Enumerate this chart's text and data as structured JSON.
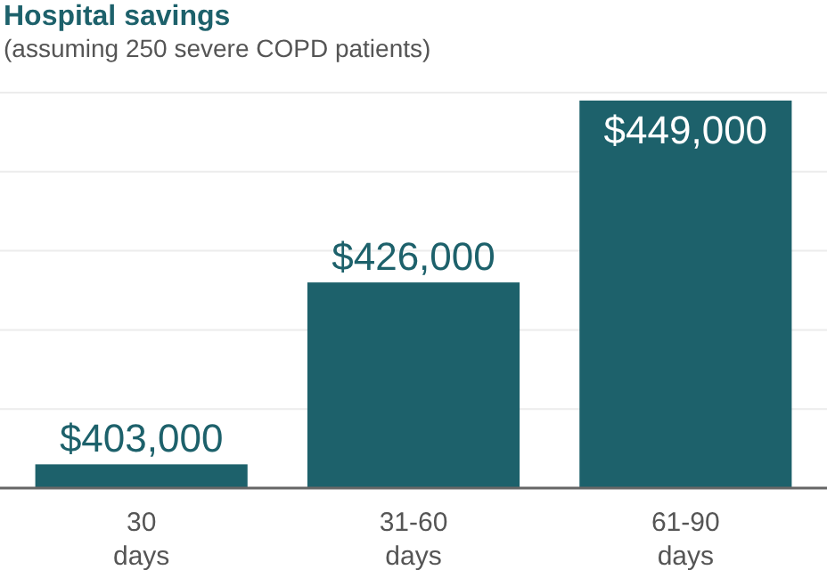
{
  "chart_data": {
    "type": "bar",
    "title": "Hospital savings",
    "subtitle": "(assuming 250 severe COPD patients)",
    "categories": [
      "30 days",
      "31-60 days",
      "61-90 days"
    ],
    "values": [
      403000,
      426000,
      449000
    ],
    "value_labels": [
      "$403,000",
      "$426,000",
      "$449,000"
    ],
    "color": "#1d616b",
    "ylim": [
      400000,
      450000
    ],
    "yticks": [
      {
        "value": 410000,
        "label": null
      },
      {
        "value": 420000,
        "label": null
      },
      {
        "value": 430000,
        "label": null
      },
      {
        "value": 440000,
        "label": null
      },
      {
        "value": 450000,
        "label": null
      }
    ],
    "grid": "y",
    "tick_labels": "x"
  }
}
